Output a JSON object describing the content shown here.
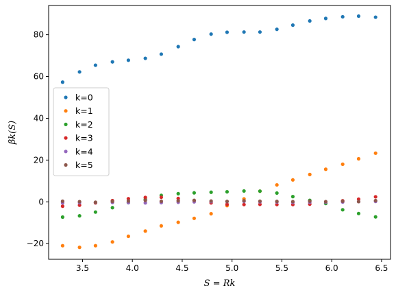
{
  "chart_data": {
    "type": "scatter",
    "xlabel": "S = Rk",
    "ylabel": "βk(S)",
    "xlim": [
      3.16,
      6.59
    ],
    "ylim": [
      -27.5,
      94
    ],
    "xticks": [
      3.5,
      4.0,
      4.5,
      5.0,
      5.5,
      6.0,
      6.5
    ],
    "xtick_labels": [
      "3.5",
      "4.0",
      "4.5",
      "5.0",
      "5.5",
      "6.0",
      "6.5"
    ],
    "yticks": [
      -20,
      0,
      20,
      40,
      60,
      80
    ],
    "ytick_labels": [
      "−20",
      "0",
      "20",
      "40",
      "60",
      "80"
    ],
    "grid": false,
    "legend_position": "center-left",
    "x": [
      3.3,
      3.47,
      3.63,
      3.8,
      3.96,
      4.13,
      4.29,
      4.46,
      4.62,
      4.79,
      4.95,
      5.12,
      5.28,
      5.45,
      5.61,
      5.78,
      5.94,
      6.11,
      6.27,
      6.44
    ],
    "series": [
      {
        "name": "k=0",
        "color": "#1f77b4",
        "values": [
          57.3,
          62.2,
          65.4,
          67.0,
          67.8,
          68.7,
          70.7,
          74.3,
          77.7,
          80.3,
          81.2,
          81.3,
          81.3,
          82.6,
          84.6,
          86.6,
          87.8,
          88.6,
          88.9,
          88.4
        ]
      },
      {
        "name": "k=1",
        "color": "#ff7f0e",
        "values": [
          -21.0,
          -21.8,
          -21.0,
          -19.2,
          -16.5,
          -14.0,
          -11.5,
          -9.8,
          -7.9,
          -5.7,
          -1.8,
          1.4,
          5.1,
          8.1,
          10.5,
          13.1,
          15.6,
          18.0,
          20.6,
          23.3
        ]
      },
      {
        "name": "k=2",
        "color": "#2ca02c",
        "values": [
          -7.3,
          -6.7,
          -4.9,
          -2.8,
          -0.4,
          1.2,
          3.1,
          3.9,
          4.3,
          4.6,
          4.8,
          5.2,
          5.1,
          4.2,
          2.5,
          0.7,
          -0.8,
          -3.8,
          -5.6,
          -7.2
        ]
      },
      {
        "name": "k=3",
        "color": "#d62728",
        "values": [
          -2.1,
          -1.6,
          -0.5,
          0.6,
          1.5,
          2.1,
          2.2,
          1.6,
          0.6,
          -0.5,
          -1.2,
          -1.3,
          -1.2,
          -1.3,
          -1.3,
          -1.1,
          -0.1,
          0.5,
          1.3,
          2.4
        ]
      },
      {
        "name": "k=4",
        "color": "#9467bd",
        "values": [
          -0.5,
          -0.4,
          -0.3,
          -0.3,
          -0.4,
          -0.5,
          -0.4,
          -0.2,
          0.0,
          0.1,
          0.1,
          0.2,
          0.0,
          -0.1,
          -0.3,
          -0.2,
          -0.2,
          -0.1,
          0.1,
          0.2
        ]
      },
      {
        "name": "k=5",
        "color": "#8c564b",
        "values": [
          0.3,
          0.1,
          -0.2,
          0.2,
          0.4,
          0.7,
          0.3,
          0.5,
          0.7,
          0.4,
          0.2,
          0.5,
          0.3,
          0.2,
          0.1,
          0.3,
          0.1,
          0.3,
          0.1,
          0.6
        ]
      }
    ]
  }
}
